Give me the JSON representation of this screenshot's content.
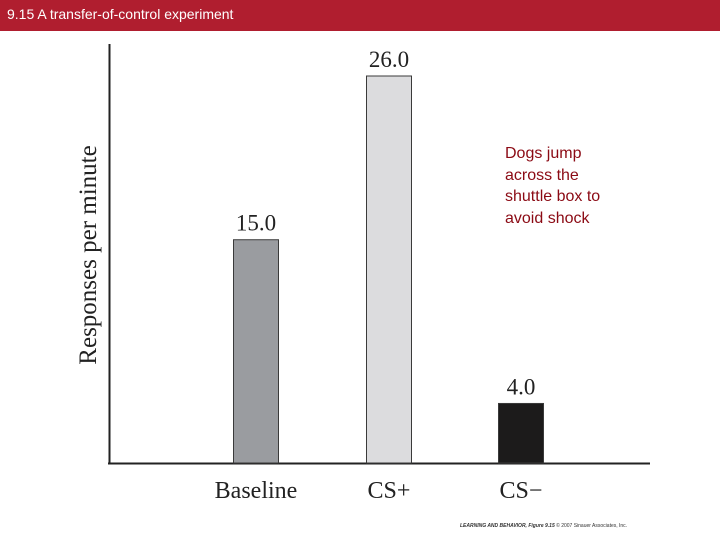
{
  "header": {
    "title": "9.15  A transfer-of-control experiment"
  },
  "colors": {
    "title_bar": "#b01e2f",
    "annotation": "#8b0a14"
  },
  "annotation": {
    "text": "Dogs jump\nacross the\nshuttle box to\navoid shock"
  },
  "credit": {
    "book": "LEARNING AND BEHAVIOR, Figure 9.15",
    "rest": "© 2007 Sinauer Associates, Inc."
  },
  "chart_data": {
    "type": "bar",
    "title": "",
    "xlabel": "",
    "ylabel": "Responses per minute",
    "ylim": [
      0,
      26
    ],
    "categories": [
      "Baseline",
      "CS+",
      "CS−"
    ],
    "values": [
      15.0,
      26.0,
      4.0
    ],
    "value_labels": [
      "15.0",
      "26.0",
      "4.0"
    ],
    "bar_colors": [
      "#9a9ca0",
      "#dcdcde",
      "#1c1b1b"
    ],
    "grid": false,
    "legend": "none"
  }
}
